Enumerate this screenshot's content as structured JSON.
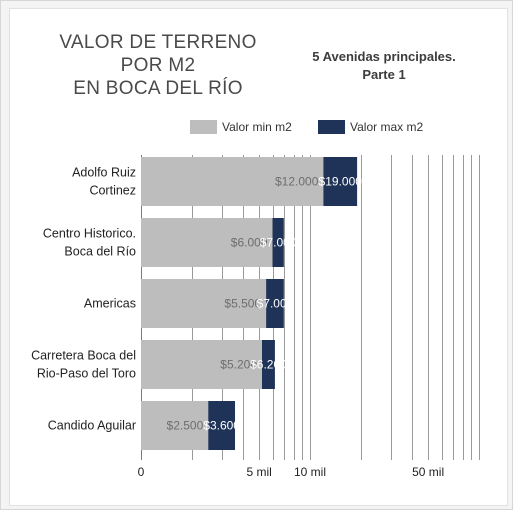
{
  "chart_data": {
    "type": "bar",
    "orientation": "horizontal",
    "stacked": true,
    "title_lines": [
      "VALOR DE TERRENO",
      "POR M2",
      "EN BOCA DEL RÍO"
    ],
    "subtitle_lines": [
      "5 Avenidas principales.",
      "Parte 1"
    ],
    "xscale": "log",
    "xlim": [
      1000,
      100000
    ],
    "x_tick_labels": [
      {
        "value": 1000,
        "label": "0"
      },
      {
        "value": 5000,
        "label": "5 mil"
      },
      {
        "value": 10000,
        "label": "10 mil"
      },
      {
        "value": 50000,
        "label": "50 mil"
      }
    ],
    "grid": true,
    "legend_position": "top-right",
    "categories": [
      [
        "Adolfo Ruiz",
        "Cortinez"
      ],
      [
        "Centro Historico.",
        "Boca del Río"
      ],
      [
        "Americas"
      ],
      [
        "Carretera Boca del",
        "Rio-Paso del Toro"
      ],
      [
        "Candido Aguilar"
      ]
    ],
    "series": [
      {
        "name": "Valor min m2",
        "color": "#bdbdbd",
        "values": [
          12000,
          6000,
          5500,
          5200,
          2500
        ],
        "labels": [
          "$12.000",
          "$6.000",
          "$5.500",
          "$5.200",
          "$2.500"
        ]
      },
      {
        "name": "Valor max m2",
        "color": "#1f3358",
        "values": [
          19000,
          7000,
          7000,
          6200,
          3600
        ],
        "labels": [
          "$19.000",
          "$7.000",
          "$7.000",
          "$6.200",
          "$3.600"
        ]
      }
    ]
  }
}
